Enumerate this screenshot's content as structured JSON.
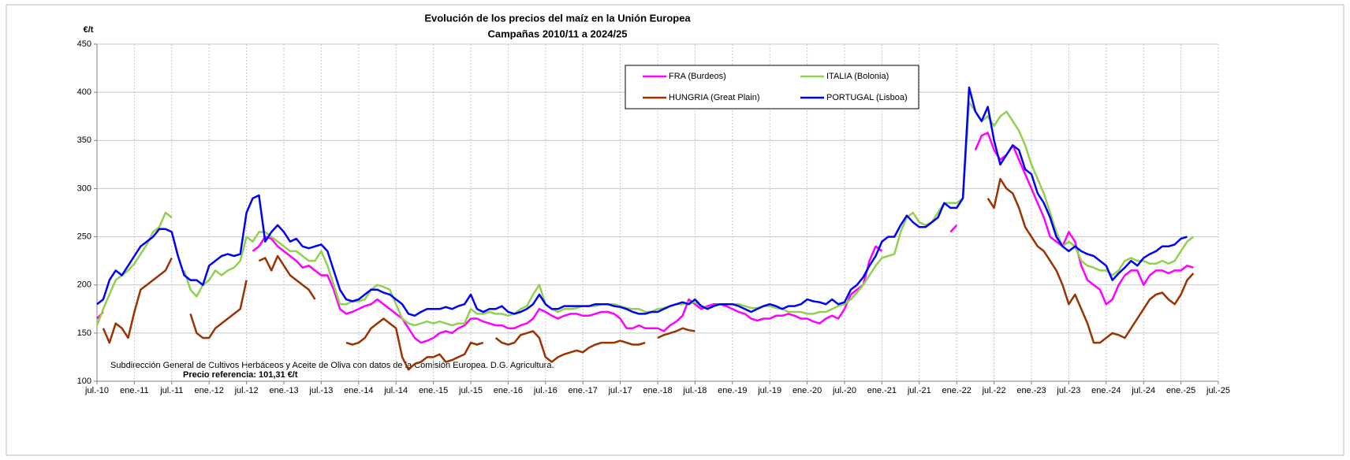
{
  "chart_data": {
    "type": "line",
    "title": "Evolución de los precios del maíz en la Unión Europea",
    "subtitle": "Campañas 2010/11 a 2024/25",
    "y_label": "€/t",
    "source": "Subdirección General de Cultivos Herbáceos y Aceite de Oliva con datos de la Comisión Europea. D.G. Agricultura.",
    "reference_note": "Precio referencia: 101,31 €/t",
    "grid": true,
    "legend": "top-right",
    "ylim": [
      100,
      450
    ],
    "yticks": [
      100,
      150,
      200,
      250,
      300,
      350,
      400,
      450
    ],
    "xlim": [
      "2010-07",
      "2025-07"
    ],
    "xticks": [
      {
        "value": "2010-07",
        "label": "jul.-10"
      },
      {
        "value": "2011-01",
        "label": "ene.-11"
      },
      {
        "value": "2011-07",
        "label": "jul.-11"
      },
      {
        "value": "2012-01",
        "label": "ene.-12"
      },
      {
        "value": "2012-07",
        "label": "jul.-12"
      },
      {
        "value": "2013-01",
        "label": "ene.-13"
      },
      {
        "value": "2013-07",
        "label": "jul.-13"
      },
      {
        "value": "2014-01",
        "label": "ene.-14"
      },
      {
        "value": "2014-07",
        "label": "jul.-14"
      },
      {
        "value": "2015-01",
        "label": "ene.-15"
      },
      {
        "value": "2015-07",
        "label": "jul.-15"
      },
      {
        "value": "2016-01",
        "label": "ene.-16"
      },
      {
        "value": "2016-07",
        "label": "jul.-16"
      },
      {
        "value": "2017-01",
        "label": "ene.-17"
      },
      {
        "value": "2017-07",
        "label": "jul.-17"
      },
      {
        "value": "2018-01",
        "label": "ene.-18"
      },
      {
        "value": "2018-07",
        "label": "jul.-18"
      },
      {
        "value": "2019-01",
        "label": "ene.-19"
      },
      {
        "value": "2019-07",
        "label": "jul.-19"
      },
      {
        "value": "2020-01",
        "label": "ene.-20"
      },
      {
        "value": "2020-07",
        "label": "jul.-20"
      },
      {
        "value": "2021-01",
        "label": "ene.-21"
      },
      {
        "value": "2021-07",
        "label": "jul.-21"
      },
      {
        "value": "2022-01",
        "label": "ene.-22"
      },
      {
        "value": "2022-07",
        "label": "jul.-22"
      },
      {
        "value": "2023-01",
        "label": "ene.-23"
      },
      {
        "value": "2023-07",
        "label": "jul.-23"
      },
      {
        "value": "2024-01",
        "label": "ene.-24"
      },
      {
        "value": "2024-07",
        "label": "jul.-24"
      },
      {
        "value": "2025-01",
        "label": "ene.-25"
      },
      {
        "value": "2025-07",
        "label": "jul.-25"
      }
    ],
    "x": [
      "2010-07",
      "2010-08",
      "2010-09",
      "2010-10",
      "2010-11",
      "2010-12",
      "2011-01",
      "2011-02",
      "2011-03",
      "2011-04",
      "2011-05",
      "2011-06",
      "2011-07",
      "2011-08",
      "2011-09",
      "2011-10",
      "2011-11",
      "2011-12",
      "2012-01",
      "2012-02",
      "2012-03",
      "2012-04",
      "2012-05",
      "2012-06",
      "2012-07",
      "2012-08",
      "2012-09",
      "2012-10",
      "2012-11",
      "2012-12",
      "2013-01",
      "2013-02",
      "2013-03",
      "2013-04",
      "2013-05",
      "2013-06",
      "2013-07",
      "2013-08",
      "2013-09",
      "2013-10",
      "2013-11",
      "2013-12",
      "2014-01",
      "2014-02",
      "2014-03",
      "2014-04",
      "2014-05",
      "2014-06",
      "2014-07",
      "2014-08",
      "2014-09",
      "2014-10",
      "2014-11",
      "2014-12",
      "2015-01",
      "2015-02",
      "2015-03",
      "2015-04",
      "2015-05",
      "2015-06",
      "2015-07",
      "2015-08",
      "2015-09",
      "2015-10",
      "2015-11",
      "2015-12",
      "2016-01",
      "2016-02",
      "2016-03",
      "2016-04",
      "2016-05",
      "2016-06",
      "2016-07",
      "2016-08",
      "2016-09",
      "2016-10",
      "2016-11",
      "2016-12",
      "2017-01",
      "2017-02",
      "2017-03",
      "2017-04",
      "2017-05",
      "2017-06",
      "2017-07",
      "2017-08",
      "2017-09",
      "2017-10",
      "2017-11",
      "2017-12",
      "2018-01",
      "2018-02",
      "2018-03",
      "2018-04",
      "2018-05",
      "2018-06",
      "2018-07",
      "2018-08",
      "2018-09",
      "2018-10",
      "2018-11",
      "2018-12",
      "2019-01",
      "2019-02",
      "2019-03",
      "2019-04",
      "2019-05",
      "2019-06",
      "2019-07",
      "2019-08",
      "2019-09",
      "2019-10",
      "2019-11",
      "2019-12",
      "2020-01",
      "2020-02",
      "2020-03",
      "2020-04",
      "2020-05",
      "2020-06",
      "2020-07",
      "2020-08",
      "2020-09",
      "2020-10",
      "2020-11",
      "2020-12",
      "2021-01",
      "2021-02",
      "2021-03",
      "2021-04",
      "2021-05",
      "2021-06",
      "2021-07",
      "2021-08",
      "2021-09",
      "2021-10",
      "2021-11",
      "2021-12",
      "2022-01",
      "2022-02",
      "2022-03",
      "2022-04",
      "2022-05",
      "2022-06",
      "2022-07",
      "2022-08",
      "2022-09",
      "2022-10",
      "2022-11",
      "2022-12",
      "2023-01",
      "2023-02",
      "2023-03",
      "2023-04",
      "2023-05",
      "2023-06",
      "2023-07",
      "2023-08",
      "2023-09",
      "2023-10",
      "2023-11",
      "2023-12",
      "2024-01",
      "2024-02",
      "2024-03",
      "2024-04",
      "2024-05",
      "2024-06",
      "2024-07",
      "2024-08",
      "2024-09",
      "2024-10",
      "2024-11",
      "2024-12",
      "2025-01",
      "2025-02",
      "2025-03",
      "2025-04"
    ],
    "series": [
      {
        "name": "FRA (Burdeos)",
        "color": "#ff00ff",
        "values": [
          165,
          172,
          null,
          null,
          null,
          null,
          null,
          null,
          null,
          null,
          null,
          null,
          null,
          null,
          null,
          null,
          null,
          null,
          null,
          null,
          null,
          null,
          null,
          null,
          null,
          235,
          240,
          250,
          248,
          240,
          235,
          230,
          225,
          218,
          220,
          215,
          210,
          210,
          195,
          175,
          170,
          172,
          175,
          178,
          180,
          185,
          180,
          175,
          170,
          165,
          155,
          145,
          140,
          142,
          145,
          150,
          152,
          150,
          155,
          158,
          165,
          165,
          162,
          160,
          158,
          158,
          155,
          155,
          158,
          160,
          165,
          175,
          172,
          168,
          165,
          168,
          170,
          170,
          168,
          168,
          170,
          172,
          172,
          170,
          165,
          155,
          155,
          158,
          155,
          155,
          155,
          152,
          158,
          162,
          168,
          185,
          180,
          175,
          178,
          180,
          180,
          178,
          175,
          172,
          170,
          165,
          163,
          165,
          165,
          168,
          168,
          170,
          168,
          165,
          165,
          162,
          160,
          165,
          168,
          165,
          175,
          190,
          195,
          200,
          225,
          240,
          235,
          null,
          null,
          null,
          null,
          null,
          null,
          null,
          null,
          null,
          null,
          255,
          262,
          null,
          null,
          340,
          355,
          358,
          340,
          330,
          335,
          345,
          330,
          315,
          300,
          285,
          270,
          250,
          245,
          240,
          255,
          245,
          220,
          205,
          200,
          195,
          180,
          185,
          200,
          210,
          215,
          215,
          200,
          210,
          215,
          215,
          212,
          215,
          215,
          220,
          218,
          null
        ]
      },
      {
        "name": "ITALIA (Bolonia)",
        "color": "#92d050",
        "values": [
          158,
          175,
          190,
          205,
          210,
          215,
          222,
          232,
          242,
          255,
          260,
          275,
          270,
          null,
          215,
          195,
          188,
          200,
          205,
          215,
          210,
          215,
          218,
          225,
          250,
          245,
          255,
          255,
          250,
          245,
          240,
          235,
          235,
          230,
          225,
          225,
          235,
          220,
          200,
          180,
          180,
          183,
          183,
          185,
          195,
          200,
          198,
          195,
          180,
          165,
          160,
          158,
          160,
          162,
          160,
          162,
          160,
          158,
          160,
          160,
          175,
          170,
          170,
          172,
          170,
          170,
          168,
          170,
          175,
          178,
          190,
          200,
          180,
          175,
          172,
          175,
          175,
          176,
          178,
          178,
          178,
          180,
          180,
          180,
          178,
          176,
          175,
          175,
          172,
          172,
          175,
          176,
          178,
          180,
          180,
          182,
          182,
          178,
          176,
          178,
          180,
          180,
          180,
          180,
          178,
          176,
          176,
          178,
          178,
          176,
          175,
          172,
          172,
          172,
          170,
          170,
          172,
          172,
          175,
          178,
          180,
          185,
          192,
          200,
          210,
          220,
          228,
          230,
          232,
          255,
          270,
          275,
          265,
          262,
          265,
          275,
          285,
          285,
          285,
          290,
          390,
          380,
          370,
          375,
          365,
          375,
          380,
          370,
          360,
          345,
          325,
          310,
          295,
          275,
          255,
          240,
          245,
          240,
          225,
          220,
          218,
          215,
          215,
          210,
          215,
          225,
          228,
          225,
          225,
          222,
          222,
          225,
          222,
          225,
          235,
          245,
          250,
          null
        ]
      },
      {
        "name": "HUNGRIA (Great Plain)",
        "color": "#993300",
        "values": [
          null,
          155,
          140,
          160,
          155,
          145,
          172,
          195,
          200,
          205,
          210,
          215,
          228,
          null,
          null,
          170,
          150,
          145,
          145,
          155,
          160,
          165,
          170,
          175,
          205,
          null,
          225,
          228,
          215,
          230,
          220,
          210,
          205,
          200,
          195,
          185,
          null,
          175,
          null,
          null,
          140,
          138,
          140,
          145,
          155,
          160,
          165,
          160,
          155,
          125,
          112,
          118,
          120,
          125,
          125,
          128,
          120,
          122,
          125,
          128,
          140,
          138,
          140,
          null,
          145,
          140,
          138,
          140,
          148,
          150,
          152,
          145,
          125,
          120,
          125,
          128,
          130,
          132,
          130,
          135,
          138,
          140,
          140,
          140,
          142,
          140,
          138,
          138,
          140,
          null,
          145,
          148,
          150,
          152,
          155,
          153,
          152,
          null,
          null,
          null,
          null,
          null,
          null,
          null,
          null,
          null,
          null,
          null,
          null,
          null,
          null,
          null,
          null,
          null,
          null,
          null,
          null,
          null,
          null,
          null,
          null,
          null,
          null,
          null,
          null,
          null,
          null,
          null,
          null,
          null,
          null,
          null,
          null,
          null,
          null,
          null,
          null,
          null,
          null,
          null,
          null,
          null,
          null,
          290,
          280,
          310,
          300,
          295,
          280,
          260,
          250,
          240,
          235,
          225,
          215,
          200,
          180,
          190,
          175,
          160,
          140,
          140,
          145,
          150,
          148,
          145,
          155,
          165,
          175,
          185,
          190,
          192,
          185,
          180,
          190,
          205,
          212,
          null
        ]
      },
      {
        "name": "PORTUGAL (Lisboa)",
        "color": "#0000ff",
        "values": [
          180,
          185,
          205,
          215,
          210,
          220,
          230,
          240,
          245,
          250,
          258,
          258,
          255,
          230,
          210,
          205,
          205,
          200,
          220,
          225,
          230,
          232,
          230,
          232,
          275,
          290,
          293,
          245,
          255,
          262,
          255,
          245,
          248,
          240,
          238,
          240,
          242,
          235,
          215,
          195,
          185,
          183,
          185,
          190,
          195,
          195,
          192,
          190,
          185,
          180,
          170,
          168,
          172,
          175,
          175,
          175,
          177,
          175,
          178,
          180,
          190,
          175,
          172,
          175,
          175,
          178,
          172,
          170,
          172,
          175,
          180,
          190,
          180,
          175,
          175,
          178,
          178,
          178,
          178,
          178,
          180,
          180,
          180,
          178,
          177,
          175,
          172,
          170,
          170,
          172,
          172,
          175,
          178,
          180,
          182,
          180,
          185,
          178,
          175,
          178,
          180,
          180,
          180,
          178,
          175,
          172,
          175,
          178,
          180,
          178,
          175,
          178,
          178,
          180,
          185,
          183,
          182,
          180,
          185,
          180,
          182,
          195,
          200,
          208,
          220,
          230,
          245,
          250,
          250,
          262,
          272,
          265,
          260,
          260,
          265,
          270,
          285,
          280,
          280,
          290,
          405,
          380,
          370,
          385,
          350,
          325,
          335,
          345,
          340,
          320,
          315,
          295,
          285,
          270,
          250,
          240,
          235,
          240,
          235,
          232,
          230,
          225,
          220,
          205,
          212,
          218,
          225,
          220,
          228,
          232,
          235,
          240,
          240,
          242,
          248,
          250,
          null,
          null
        ]
      }
    ]
  }
}
